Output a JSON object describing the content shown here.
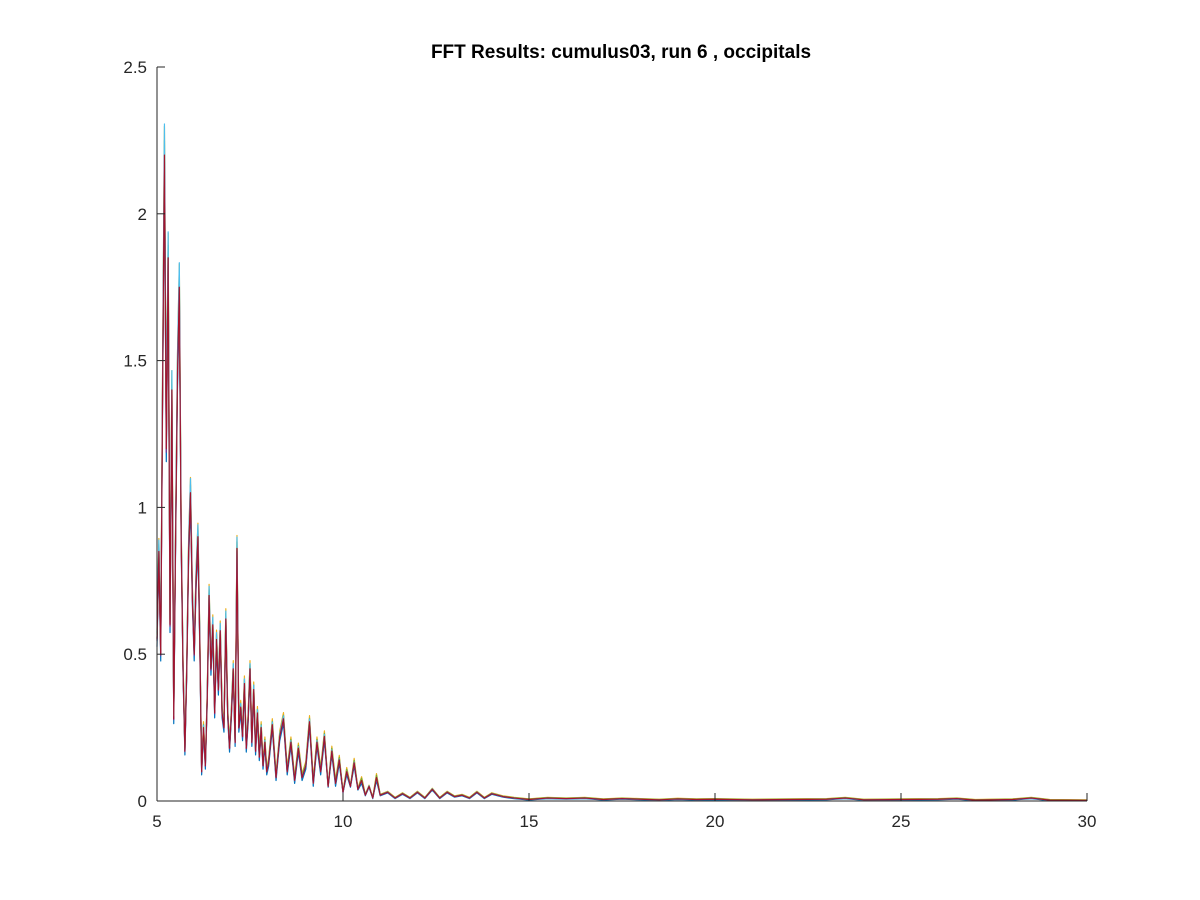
{
  "chart_data": {
    "type": "line",
    "title": "FFT Results: cumulus03, run 6 , occipitals",
    "xlabel": "",
    "ylabel": "",
    "xlim": [
      5,
      30
    ],
    "ylim": [
      0,
      2.5
    ],
    "xticks": [
      5,
      10,
      15,
      20,
      25,
      30
    ],
    "xtick_labels": [
      "5",
      "10",
      "15",
      "20",
      "25",
      "30"
    ],
    "yticks": [
      0,
      0.5,
      1,
      1.5,
      2,
      2.5
    ],
    "ytick_labels": [
      "0",
      "0.5",
      "1",
      "1.5",
      "2",
      "2.5"
    ],
    "grid": false,
    "legend": "none",
    "colors": [
      "#0072BD",
      "#D95319",
      "#EDB120",
      "#7E2F8E",
      "#77AC30",
      "#4DBEEE",
      "#A2142F"
    ],
    "base_series": {
      "x": [
        5.0,
        5.05,
        5.1,
        5.15,
        5.2,
        5.25,
        5.3,
        5.35,
        5.4,
        5.45,
        5.5,
        5.55,
        5.6,
        5.65,
        5.7,
        5.75,
        5.8,
        5.85,
        5.9,
        5.95,
        6.0,
        6.05,
        6.1,
        6.15,
        6.2,
        6.25,
        6.3,
        6.35,
        6.4,
        6.45,
        6.5,
        6.55,
        6.6,
        6.65,
        6.7,
        6.75,
        6.8,
        6.85,
        6.9,
        6.95,
        7.0,
        7.05,
        7.1,
        7.15,
        7.2,
        7.25,
        7.3,
        7.35,
        7.4,
        7.45,
        7.5,
        7.55,
        7.6,
        7.65,
        7.7,
        7.75,
        7.8,
        7.85,
        7.9,
        7.95,
        8.0,
        8.1,
        8.2,
        8.3,
        8.4,
        8.5,
        8.6,
        8.7,
        8.8,
        8.9,
        9.0,
        9.1,
        9.2,
        9.3,
        9.4,
        9.5,
        9.6,
        9.7,
        9.8,
        9.9,
        10.0,
        10.1,
        10.2,
        10.3,
        10.4,
        10.5,
        10.6,
        10.7,
        10.8,
        10.9,
        11.0,
        11.2,
        11.4,
        11.6,
        11.8,
        12.0,
        12.2,
        12.4,
        12.6,
        12.8,
        13.0,
        13.2,
        13.4,
        13.6,
        13.8,
        14.0,
        14.3,
        14.6,
        15.0,
        15.5,
        16.0,
        16.5,
        17.0,
        17.5,
        18.0,
        18.5,
        19.0,
        19.5,
        20.0,
        21.0,
        22.0,
        23.0,
        23.5,
        24.0,
        25.0,
        26.0,
        26.5,
        27.0,
        28.0,
        28.5,
        29.0,
        30.0
      ],
      "y": [
        0.55,
        0.85,
        0.5,
        1.4,
        2.2,
        1.2,
        1.85,
        0.6,
        1.4,
        0.28,
        0.9,
        1.45,
        1.75,
        0.9,
        0.45,
        0.17,
        0.45,
        0.85,
        1.05,
        0.7,
        0.5,
        0.75,
        0.9,
        0.55,
        0.1,
        0.25,
        0.12,
        0.35,
        0.7,
        0.45,
        0.6,
        0.3,
        0.55,
        0.38,
        0.58,
        0.3,
        0.25,
        0.62,
        0.3,
        0.18,
        0.3,
        0.45,
        0.2,
        0.86,
        0.25,
        0.32,
        0.22,
        0.4,
        0.18,
        0.28,
        0.45,
        0.2,
        0.38,
        0.17,
        0.3,
        0.15,
        0.25,
        0.12,
        0.2,
        0.1,
        0.13,
        0.26,
        0.08,
        0.22,
        0.28,
        0.1,
        0.2,
        0.07,
        0.18,
        0.08,
        0.12,
        0.27,
        0.06,
        0.2,
        0.1,
        0.22,
        0.05,
        0.17,
        0.06,
        0.14,
        0.03,
        0.1,
        0.05,
        0.13,
        0.04,
        0.07,
        0.02,
        0.05,
        0.01,
        0.08,
        0.02,
        0.03,
        0.01,
        0.025,
        0.01,
        0.03,
        0.01,
        0.04,
        0.01,
        0.03,
        0.015,
        0.02,
        0.01,
        0.03,
        0.01,
        0.025,
        0.015,
        0.01,
        0.005,
        0.01,
        0.008,
        0.01,
        0.005,
        0.008,
        0.006,
        0.004,
        0.007,
        0.005,
        0.006,
        0.004,
        0.005,
        0.006,
        0.01,
        0.004,
        0.005,
        0.006,
        0.008,
        0.003,
        0.005,
        0.01,
        0.003,
        0.002
      ]
    },
    "series": [
      {
        "scale": 0.97,
        "offset": -0.008
      },
      {
        "scale": 1.0,
        "offset": 0.004
      },
      {
        "scale": 1.04,
        "offset": 0.01
      },
      {
        "scale": 0.99,
        "offset": 0.0
      },
      {
        "scale": 1.02,
        "offset": 0.006
      },
      {
        "scale": 1.05,
        "offset": -0.004
      },
      {
        "scale": 1.0,
        "offset": 0.0
      }
    ]
  }
}
